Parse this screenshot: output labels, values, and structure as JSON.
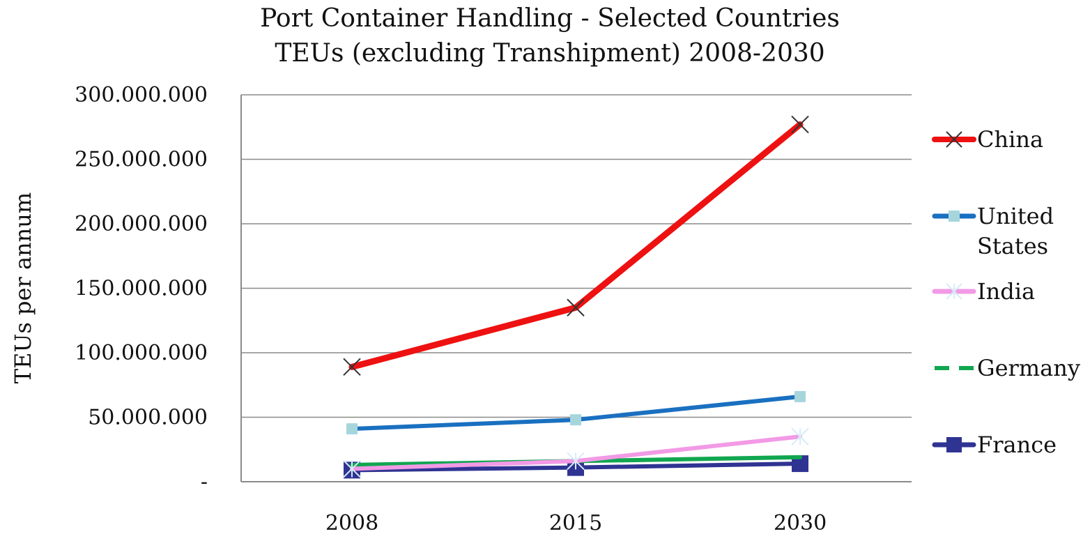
{
  "chart_data": {
    "type": "line",
    "title": "Port Container Handling - Selected Countries",
    "subtitle": "TEUs (excluding Transhipment) 2008-2030",
    "xlabel": "",
    "ylabel": "TEUs  per annum",
    "categories": [
      "2008",
      "2015",
      "2030"
    ],
    "ylim": [
      0,
      300000000
    ],
    "yticks": [
      {
        "value": 0,
        "label": "-"
      },
      {
        "value": 50000000,
        "label": "50.000.000"
      },
      {
        "value": 100000000,
        "label": "100.000.000"
      },
      {
        "value": 150000000,
        "label": "150.000.000"
      },
      {
        "value": 200000000,
        "label": "200.000.000"
      },
      {
        "value": 250000000,
        "label": "250.000.000"
      },
      {
        "value": 300000000,
        "label": "300.000.000"
      }
    ],
    "grid": true,
    "legend_position": "right",
    "series": [
      {
        "name": "China",
        "values": [
          89000000,
          135000000,
          277000000
        ],
        "color": "#ee1111",
        "marker": "x",
        "marker_color": "#333333"
      },
      {
        "name": "United States",
        "values": [
          41000000,
          48000000,
          66000000
        ],
        "color": "#1a70c0",
        "marker": "square",
        "marker_color": "#a6d6dc"
      },
      {
        "name": "India",
        "values": [
          10000000,
          16000000,
          35000000
        ],
        "color": "#f29ae6",
        "marker": "star",
        "marker_color": "#d8ecf7"
      },
      {
        "name": "Germany",
        "values": [
          13000000,
          16000000,
          19000000
        ],
        "color": "#11a650",
        "marker": "dash",
        "marker_color": "#11a650"
      },
      {
        "name": "France",
        "values": [
          9000000,
          11000000,
          14000000
        ],
        "color": "#2f3392",
        "marker": "square",
        "marker_color": "#2f3392"
      }
    ]
  }
}
